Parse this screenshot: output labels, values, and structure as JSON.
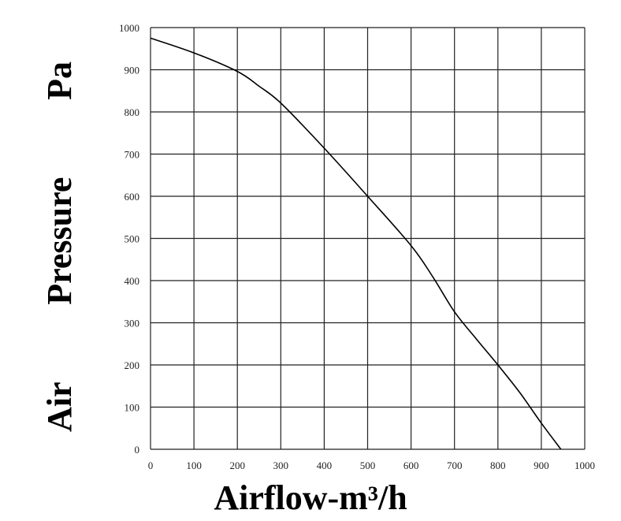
{
  "chart_data": {
    "type": "line",
    "title": "",
    "xlabel": "Airflow-m³/h",
    "ylabel_words": [
      "Air",
      "Pressure",
      "Pa"
    ],
    "xlim": [
      0,
      1000
    ],
    "ylim": [
      0,
      1000
    ],
    "xticks": [
      0,
      100,
      200,
      300,
      400,
      500,
      600,
      700,
      800,
      900,
      1000
    ],
    "yticks": [
      0,
      100,
      200,
      300,
      400,
      500,
      600,
      700,
      800,
      900,
      1000
    ],
    "grid": true,
    "line_color": "#000000",
    "series": [
      {
        "x": [
          0,
          100,
          200,
          250,
          300,
          400,
          500,
          600,
          650,
          700,
          750,
          800,
          850,
          900,
          945
        ],
        "y": [
          975,
          940,
          896,
          861,
          821,
          714,
          600,
          483,
          409,
          326,
          262,
          200,
          135,
          62,
          0
        ]
      }
    ]
  }
}
